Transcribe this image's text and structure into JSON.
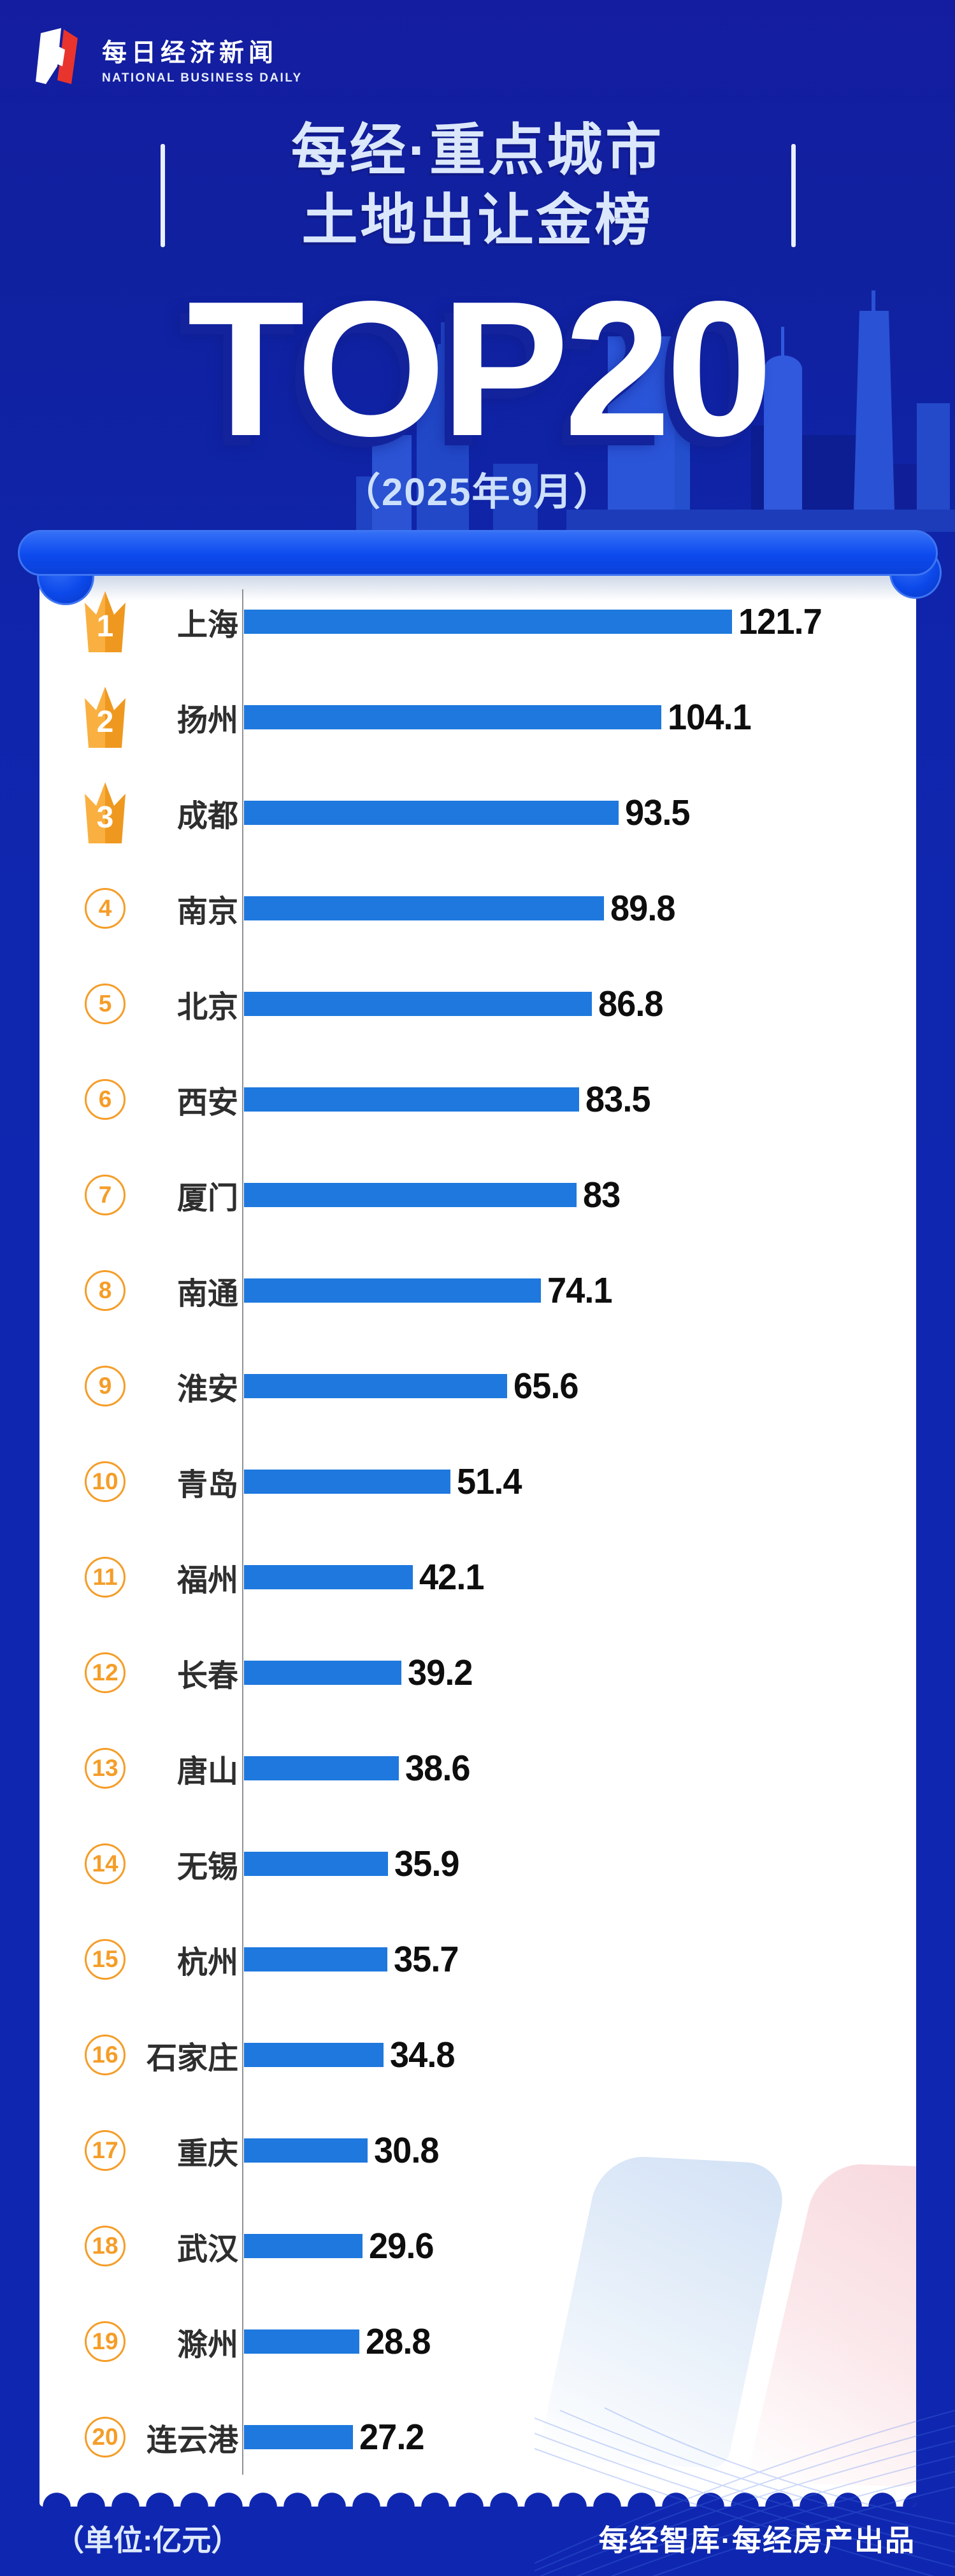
{
  "brand": {
    "logo_icon": "nbd-n-logo-icon",
    "name_cn": "每日经济新闻",
    "name_en": "NATIONAL BUSINESS DAILY"
  },
  "header": {
    "title_line1": "每经·重点城市",
    "title_line2": "土地出让金榜",
    "top_label": "TOP20",
    "period": "（2025年9月）"
  },
  "chart_data": {
    "type": "bar",
    "orientation": "horizontal",
    "title": "每经·重点城市土地出让金榜 TOP20（2025年9月）",
    "unit": "亿元",
    "xlim": [
      0,
      130
    ],
    "grid": false,
    "legend": false,
    "axis_style": "single vertical baseline at left, no ticks",
    "bar_color": "#1e78de",
    "categories": [
      "上海",
      "扬州",
      "成都",
      "南京",
      "北京",
      "西安",
      "厦门",
      "南通",
      "淮安",
      "青岛",
      "福州",
      "长春",
      "唐山",
      "无锡",
      "杭州",
      "石家庄",
      "重庆",
      "武汉",
      "滁州",
      "连云港"
    ],
    "values": [
      121.7,
      104.1,
      93.5,
      89.8,
      86.8,
      83.5,
      83,
      74.1,
      65.6,
      51.4,
      42.1,
      39.2,
      38.6,
      35.9,
      35.7,
      34.8,
      30.8,
      29.6,
      28.8,
      27.2
    ],
    "value_labels": [
      "121.7",
      "104.1",
      "93.5",
      "89.8",
      "86.8",
      "83.5",
      "83",
      "74.1",
      "65.6",
      "51.4",
      "42.1",
      "39.2",
      "38.6",
      "35.9",
      "35.7",
      "34.8",
      "30.8",
      "29.6",
      "28.8",
      "27.2"
    ],
    "ranks": [
      1,
      2,
      3,
      4,
      5,
      6,
      7,
      8,
      9,
      10,
      11,
      12,
      13,
      14,
      15,
      16,
      17,
      18,
      19,
      20
    ],
    "rank_badge_style": {
      "top3": "orange crown with white number",
      "others": "orange outlined circle with orange number"
    }
  },
  "footer": {
    "unit_label": "（单位:亿元）",
    "credit": "每经智库·每经房产出品"
  },
  "icons": {
    "crown": "crown-badge-icon",
    "skyline": "city-skyline-silhouette",
    "watermark": "nbd-logo-watermark"
  },
  "colors": {
    "background": "#0f27b0",
    "background_top": "#141da0",
    "bar": "#1e78de",
    "crown_light": "#f9b041",
    "crown_dark": "#ef981f",
    "circle_badge": "#f59d28",
    "roller_blue": "#0c4aee",
    "title_text": "#dbe7fb",
    "top20_shadow": "#12239b",
    "city_text": "#2e2e2e",
    "value_text": "#0e0e0e",
    "card": "#ffffff"
  }
}
